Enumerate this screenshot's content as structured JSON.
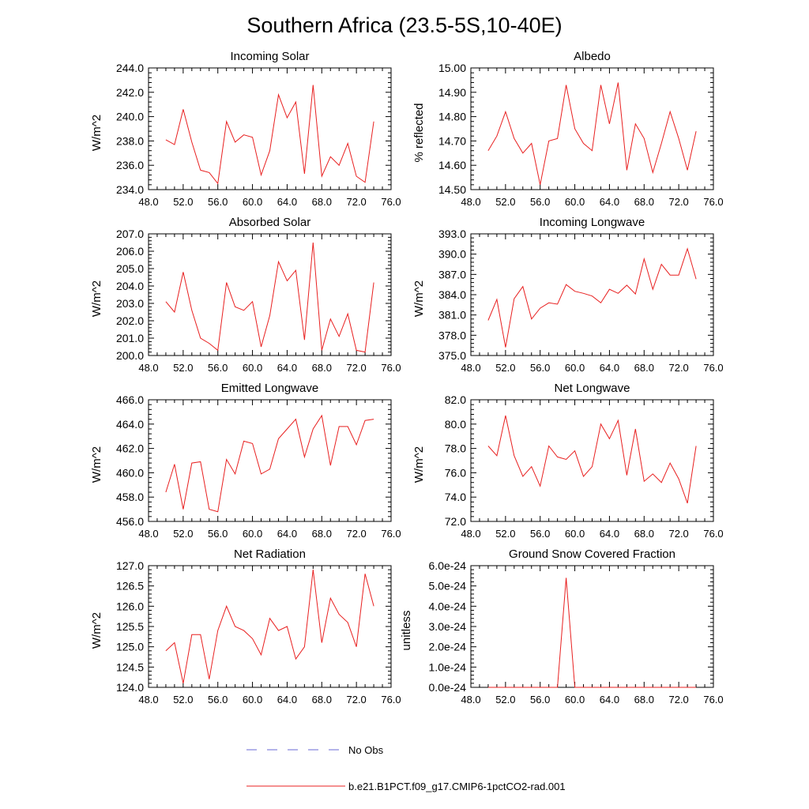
{
  "figure": {
    "title": "Southern Africa (23.5-5S,10-40E)"
  },
  "legend": {
    "items": [
      {
        "label": "No Obs",
        "color": "#6a6ad6",
        "dash": true
      },
      {
        "label": "b.e21.B1PCT.f09_g17.CMIP6-1pctCO2-rad.001",
        "color": "#e82020",
        "dash": false
      }
    ]
  },
  "colors": {
    "series": "#e82020",
    "axis": "#000000"
  },
  "chart_data": [
    {
      "type": "line",
      "title": "Incoming Solar",
      "ylabel": "W/m^2",
      "xlim": [
        48,
        76
      ],
      "xticks": [
        "48.0",
        "52.0",
        "56.0",
        "60.0",
        "64.0",
        "68.0",
        "72.0",
        "76.0"
      ],
      "ylim": [
        234,
        244
      ],
      "yticks": [
        "234.0",
        "236.0",
        "238.0",
        "240.0",
        "242.0",
        "244.0"
      ],
      "x": [
        50,
        51,
        52,
        53,
        54,
        55,
        56,
        57,
        58,
        59,
        60,
        61,
        62,
        63,
        64,
        65,
        66,
        67,
        68,
        69,
        70,
        71,
        72,
        73,
        74
      ],
      "series": [
        {
          "values": [
            238.1,
            237.7,
            240.6,
            237.9,
            235.6,
            235.4,
            234.5,
            239.6,
            237.9,
            238.5,
            238.3,
            235.2,
            237.2,
            241.8,
            239.9,
            241.2,
            235.3,
            242.6,
            235.1,
            236.7,
            236.0,
            237.8,
            235.1,
            234.6,
            239.6
          ]
        }
      ]
    },
    {
      "type": "line",
      "title": "Albedo",
      "ylabel": "% reflected",
      "xlim": [
        48,
        76
      ],
      "xticks": [
        "48.0",
        "52.0",
        "56.0",
        "60.0",
        "64.0",
        "68.0",
        "72.0",
        "76.0"
      ],
      "ylim": [
        14.5,
        15.0
      ],
      "yticks": [
        "14.50",
        "14.60",
        "14.70",
        "14.80",
        "14.90",
        "15.00"
      ],
      "x": [
        50,
        51,
        52,
        53,
        54,
        55,
        56,
        57,
        58,
        59,
        60,
        61,
        62,
        63,
        64,
        65,
        66,
        67,
        68,
        69,
        70,
        71,
        72,
        73,
        74
      ],
      "series": [
        {
          "values": [
            14.66,
            14.72,
            14.82,
            14.71,
            14.65,
            14.69,
            14.52,
            14.7,
            14.71,
            14.93,
            14.75,
            14.69,
            14.66,
            14.93,
            14.77,
            14.94,
            14.58,
            14.77,
            14.71,
            14.57,
            14.69,
            14.82,
            14.71,
            14.58,
            14.74
          ]
        }
      ]
    },
    {
      "type": "line",
      "title": "Absorbed Solar",
      "ylabel": "W/m^2",
      "xlim": [
        48,
        76
      ],
      "xticks": [
        "48.0",
        "52.0",
        "56.0",
        "60.0",
        "64.0",
        "68.0",
        "72.0",
        "76.0"
      ],
      "ylim": [
        200,
        207
      ],
      "yticks": [
        "200.0",
        "201.0",
        "202.0",
        "203.0",
        "204.0",
        "205.0",
        "206.0",
        "207.0"
      ],
      "x": [
        50,
        51,
        52,
        53,
        54,
        55,
        56,
        57,
        58,
        59,
        60,
        61,
        62,
        63,
        64,
        65,
        66,
        67,
        68,
        69,
        70,
        71,
        72,
        73,
        74
      ],
      "series": [
        {
          "values": [
            203.1,
            202.5,
            204.8,
            202.6,
            201.0,
            200.7,
            200.3,
            204.2,
            202.8,
            202.6,
            203.1,
            200.5,
            202.3,
            205.4,
            204.3,
            204.9,
            200.9,
            206.5,
            200.3,
            202.1,
            201.1,
            202.4,
            200.3,
            200.2,
            204.2
          ]
        }
      ]
    },
    {
      "type": "line",
      "title": "Incoming Longwave",
      "ylabel": "W/m^2",
      "xlim": [
        48,
        76
      ],
      "xticks": [
        "48.0",
        "52.0",
        "56.0",
        "60.0",
        "64.0",
        "68.0",
        "72.0",
        "76.0"
      ],
      "ylim": [
        375,
        393
      ],
      "yticks": [
        "375.0",
        "378.0",
        "381.0",
        "384.0",
        "387.0",
        "390.0",
        "393.0"
      ],
      "x": [
        50,
        51,
        52,
        53,
        54,
        55,
        56,
        57,
        58,
        59,
        60,
        61,
        62,
        63,
        64,
        65,
        66,
        67,
        68,
        69,
        70,
        71,
        72,
        73,
        74
      ],
      "series": [
        {
          "values": [
            380.2,
            383.3,
            376.2,
            383.4,
            385.2,
            380.4,
            382.0,
            382.8,
            382.6,
            385.5,
            384.5,
            384.2,
            383.8,
            382.8,
            384.8,
            384.2,
            385.4,
            384.1,
            389.3,
            384.8,
            388.5,
            386.9,
            386.9,
            390.8,
            386.3
          ]
        }
      ]
    },
    {
      "type": "line",
      "title": "Emitted Longwave",
      "ylabel": "W/m^2",
      "xlim": [
        48,
        76
      ],
      "xticks": [
        "48.0",
        "52.0",
        "56.0",
        "60.0",
        "64.0",
        "68.0",
        "72.0",
        "76.0"
      ],
      "ylim": [
        456,
        466
      ],
      "yticks": [
        "456.0",
        "458.0",
        "460.0",
        "462.0",
        "464.0",
        "466.0"
      ],
      "x": [
        50,
        51,
        52,
        53,
        54,
        55,
        56,
        57,
        58,
        59,
        60,
        61,
        62,
        63,
        64,
        65,
        66,
        67,
        68,
        69,
        70,
        71,
        72,
        73,
        74
      ],
      "series": [
        {
          "values": [
            458.4,
            460.7,
            457.0,
            460.8,
            460.9,
            457.0,
            456.8,
            461.1,
            459.9,
            462.6,
            462.4,
            459.9,
            460.3,
            462.8,
            463.6,
            464.4,
            461.3,
            463.6,
            464.7,
            460.6,
            463.8,
            463.8,
            462.3,
            464.3,
            464.4
          ]
        }
      ]
    },
    {
      "type": "line",
      "title": "Net Longwave",
      "ylabel": "W/m^2",
      "xlim": [
        48,
        76
      ],
      "xticks": [
        "48.0",
        "52.0",
        "56.0",
        "60.0",
        "64.0",
        "68.0",
        "72.0",
        "76.0"
      ],
      "ylim": [
        72,
        82
      ],
      "yticks": [
        "72.0",
        "74.0",
        "76.0",
        "78.0",
        "80.0",
        "82.0"
      ],
      "x": [
        50,
        51,
        52,
        53,
        54,
        55,
        56,
        57,
        58,
        59,
        60,
        61,
        62,
        63,
        64,
        65,
        66,
        67,
        68,
        69,
        70,
        71,
        72,
        73,
        74
      ],
      "series": [
        {
          "values": [
            78.2,
            77.4,
            80.7,
            77.4,
            75.7,
            76.5,
            74.9,
            78.2,
            77.3,
            77.1,
            77.8,
            75.7,
            76.5,
            80.0,
            78.8,
            80.3,
            75.8,
            79.6,
            75.3,
            75.9,
            75.2,
            76.8,
            75.5,
            73.5,
            78.2
          ]
        }
      ]
    },
    {
      "type": "line",
      "title": "Net Radiation",
      "ylabel": "W/m^2",
      "xlim": [
        48,
        76
      ],
      "xticks": [
        "48.0",
        "52.0",
        "56.0",
        "60.0",
        "64.0",
        "68.0",
        "72.0",
        "76.0"
      ],
      "ylim": [
        124,
        127
      ],
      "yticks": [
        "124.0",
        "124.5",
        "125.0",
        "125.5",
        "126.0",
        "126.5",
        "127.0"
      ],
      "x": [
        50,
        51,
        52,
        53,
        54,
        55,
        56,
        57,
        58,
        59,
        60,
        61,
        62,
        63,
        64,
        65,
        66,
        67,
        68,
        69,
        70,
        71,
        72,
        73,
        74
      ],
      "series": [
        {
          "values": [
            124.9,
            125.1,
            124.1,
            125.3,
            125.3,
            124.2,
            125.4,
            126.0,
            125.5,
            125.4,
            125.2,
            124.8,
            125.7,
            125.4,
            125.5,
            124.7,
            125.0,
            126.9,
            125.1,
            126.2,
            125.8,
            125.6,
            125.0,
            126.8,
            126.0
          ]
        }
      ]
    },
    {
      "type": "line",
      "title": "Ground Snow Covered Fraction",
      "ylabel": "unitless",
      "xlim": [
        48,
        76
      ],
      "xticks": [
        "48.0",
        "52.0",
        "56.0",
        "60.0",
        "64.0",
        "68.0",
        "72.0",
        "76.0"
      ],
      "ylim": [
        0,
        6e-24
      ],
      "yticks": [
        "0.0e-24",
        "1.0e-24",
        "2.0e-24",
        "3.0e-24",
        "4.0e-24",
        "5.0e-24",
        "6.0e-24"
      ],
      "x": [
        50,
        51,
        52,
        53,
        54,
        55,
        56,
        57,
        58,
        59,
        60,
        61,
        62,
        63,
        64,
        65,
        66,
        67,
        68,
        69,
        70,
        71,
        72,
        73,
        74
      ],
      "series": [
        {
          "values": [
            0,
            0,
            0,
            0,
            0,
            0,
            0,
            0,
            0,
            5.4e-24,
            0,
            0,
            0,
            0,
            0,
            0,
            0,
            0,
            0,
            0,
            0,
            0,
            0,
            0,
            0
          ]
        }
      ]
    }
  ]
}
